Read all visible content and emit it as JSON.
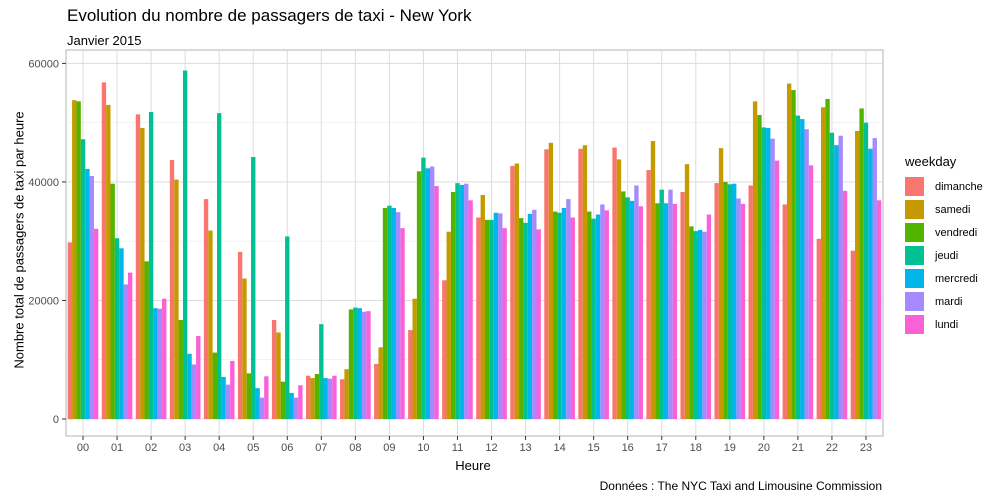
{
  "chart_data": {
    "type": "bar",
    "title": "Evolution du nombre de passagers de taxi - New York",
    "subtitle": "Janvier 2015",
    "caption": "Données : The NYC Taxi and Limousine Commission",
    "xlabel": "Heure",
    "ylabel": "Nombre total de passagers de taxi par heure",
    "ylim": [
      0,
      61000
    ],
    "yticks": [
      0,
      20000,
      40000,
      60000
    ],
    "grid": true,
    "legend_title": "weekday",
    "legend_position": "right",
    "categories": [
      "00",
      "01",
      "02",
      "03",
      "04",
      "05",
      "06",
      "07",
      "08",
      "09",
      "10",
      "11",
      "12",
      "13",
      "14",
      "15",
      "16",
      "17",
      "18",
      "19",
      "20",
      "21",
      "22",
      "23"
    ],
    "series": [
      {
        "name": "dimanche",
        "color": "#F8766D",
        "values": [
          29800,
          56800,
          51400,
          43700,
          37100,
          28200,
          16700,
          7300,
          6700,
          9300,
          15000,
          23400,
          34000,
          42700,
          45500,
          45600,
          45800,
          42000,
          38300,
          39800,
          39400,
          36200,
          30400,
          28400
        ]
      },
      {
        "name": "samedi",
        "color": "#C49A00",
        "values": [
          53800,
          53000,
          49100,
          40400,
          31800,
          23700,
          14600,
          6900,
          8400,
          12100,
          20300,
          31600,
          37800,
          43100,
          46600,
          46200,
          43800,
          46900,
          43000,
          45700,
          53600,
          56600,
          52600,
          48600
        ]
      },
      {
        "name": "vendredi",
        "color": "#53B400",
        "values": [
          53600,
          39700,
          26600,
          16700,
          11200,
          7700,
          6300,
          7600,
          18500,
          35600,
          41800,
          38300,
          33600,
          33900,
          35000,
          35000,
          38400,
          36400,
          32500,
          40000,
          51300,
          55500,
          54000,
          52400
        ]
      },
      {
        "name": "jeudi",
        "color": "#00C094",
        "values": [
          47200,
          30500,
          51800,
          58800,
          51600,
          44200,
          30800,
          16000,
          18800,
          36000,
          44100,
          39800,
          33600,
          33100,
          34800,
          33800,
          37400,
          38700,
          31700,
          39600,
          49200,
          51200,
          48300,
          50000
        ]
      },
      {
        "name": "mercredi",
        "color": "#00B6EB",
        "values": [
          42200,
          28800,
          18700,
          11000,
          7100,
          5200,
          4400,
          6900,
          18700,
          35600,
          42300,
          39500,
          34800,
          34600,
          35600,
          34500,
          36800,
          36400,
          31900,
          39700,
          49100,
          50600,
          46200,
          45600
        ]
      },
      {
        "name": "mardi",
        "color": "#A58AFF",
        "values": [
          41000,
          22700,
          18600,
          9200,
          5800,
          3600,
          3600,
          6800,
          18100,
          34900,
          42600,
          39700,
          34700,
          35300,
          37100,
          36200,
          39400,
          38700,
          31600,
          37200,
          47300,
          48900,
          47800,
          47400
        ]
      },
      {
        "name": "lundi",
        "color": "#FB61D7",
        "values": [
          32100,
          24700,
          20300,
          14000,
          9800,
          7200,
          5700,
          7300,
          18200,
          32200,
          39300,
          36900,
          32200,
          32000,
          34000,
          35200,
          35900,
          36300,
          34500,
          36300,
          43600,
          42800,
          38500,
          36900
        ]
      }
    ]
  }
}
